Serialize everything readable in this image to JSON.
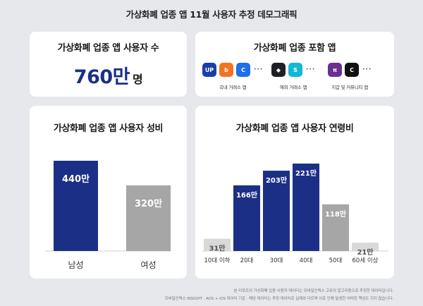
{
  "page": {
    "title": "가상화폐 업종 앱 11월 사용자 추정 데모그래픽"
  },
  "users_card": {
    "title": "가상화폐 업종 앱 사용자 수",
    "value": "760만",
    "unit": "명"
  },
  "apps_card": {
    "title": "가상화폐 업종 포함 앱",
    "groups": [
      {
        "label": "국내 거래소 앱",
        "icons": [
          {
            "name": "upbit-app-icon",
            "text": "UP",
            "color": "#1b3fa8"
          },
          {
            "name": "bithumb-app-icon",
            "text": "b",
            "color": "#f37321"
          },
          {
            "name": "coinone-app-icon",
            "text": "C",
            "color": "#1e6fe8"
          }
        ]
      },
      {
        "label": "해외 거래소 앱",
        "icons": [
          {
            "name": "binance-app-icon",
            "text": "◆",
            "color": "#1e2026"
          },
          {
            "name": "bitget-app-icon",
            "text": "S",
            "color": "#14b8d4"
          }
        ]
      },
      {
        "label": "지갑 및 커뮤니티 앱",
        "icons": [
          {
            "name": "pi-network-app-icon",
            "text": "π",
            "color": "#6b2f8f"
          },
          {
            "name": "coinness-app-icon",
            "text": "C",
            "color": "#111111"
          }
        ]
      }
    ],
    "more": "···"
  },
  "chart_data": [
    {
      "type": "bar",
      "title": "가상화폐 업종 앱 사용자 성비",
      "categories": [
        "남성",
        "여성"
      ],
      "values": [
        440,
        320
      ],
      "value_labels": [
        "440만",
        "320만"
      ],
      "colors": [
        "#1c2f87",
        "#a6a6a6"
      ],
      "ylim": [
        0,
        440
      ]
    },
    {
      "type": "bar",
      "title": "가상화폐 업종 앱 사용자 연령비",
      "categories": [
        "10대 이하",
        "20대",
        "30대",
        "40대",
        "50대",
        "60세 이상"
      ],
      "values": [
        31,
        166,
        203,
        221,
        118,
        21
      ],
      "value_labels": [
        "31만",
        "166만",
        "203만",
        "221만",
        "118만",
        "21만"
      ],
      "colors": [
        "#d9d9d9",
        "#1c2f87",
        "#1c2f87",
        "#1c2f87",
        "#a6a6a6",
        "#d9d9d9"
      ],
      "label_colors": [
        "#555555",
        "#ffffff",
        "#ffffff",
        "#ffffff",
        "#ffffff",
        "#555555"
      ],
      "ylim": [
        0,
        221
      ]
    }
  ],
  "footnotes": [
    "본 리포트의 가상화폐 업종 사용자 데이터는 모바일인덱스 고유의 알고리즘으로 추정한 데이터입니다.",
    "모바일인덱스 INSIGHT · AOS + iOS 데이터 기준 · 해당 데이터는 추정 데이터로 실제와 다르며 이로 인해 발생한 어떠한 책임도 지지 않습니다."
  ]
}
